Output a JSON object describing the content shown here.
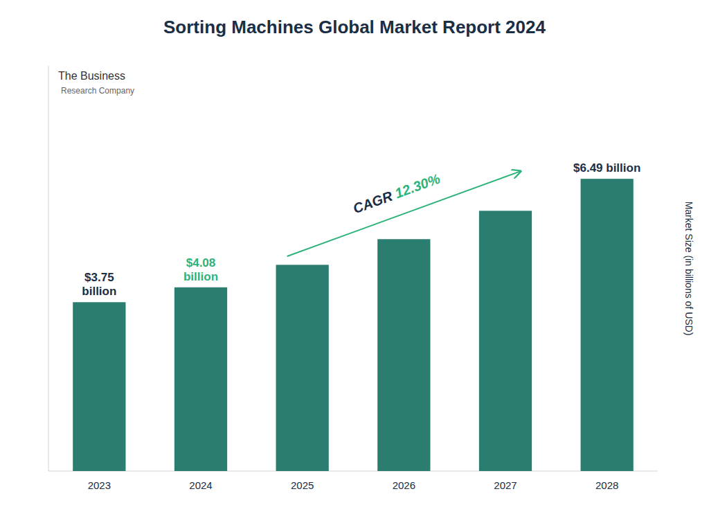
{
  "chart_data": {
    "type": "bar",
    "title": "Sorting Machines Global Market Report 2024",
    "categories": [
      "2023",
      "2024",
      "2025",
      "2026",
      "2027",
      "2028"
    ],
    "values": [
      3.75,
      4.08,
      4.58,
      5.15,
      5.78,
      6.49
    ],
    "color": "#2a7d6f",
    "ylabel": "Market Size (in billions of USD)",
    "ylim": [
      0,
      9.0
    ],
    "tick_labels": "x",
    "grid": false,
    "annotations": [
      {
        "text": "$3.75\nbillion",
        "category": "2023",
        "color": "#1a2e44"
      },
      {
        "text": "$4.08\nbillion",
        "category": "2024",
        "color": "#2db37a"
      },
      {
        "text": "$6.49 billion",
        "category": "2028",
        "color": "#1a2e44"
      },
      {
        "text": "CAGR ",
        "color": "#1a2e44"
      },
      {
        "text": "12.30%",
        "color": "#2db37a",
        "arrow": true
      },
      {
        "text": "The Business",
        "color": "#333333"
      },
      {
        "text": "Research Company",
        "color": "#666666"
      }
    ]
  }
}
